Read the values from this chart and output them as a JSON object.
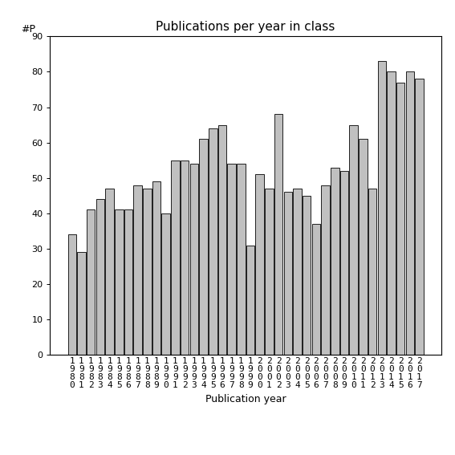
{
  "title": "Publications per year in class",
  "xlabel": "Publication year",
  "ylabel": "#P",
  "years": [
    1980,
    1981,
    1982,
    1983,
    1984,
    1985,
    1986,
    1987,
    1988,
    1989,
    1990,
    1991,
    1992,
    1993,
    1994,
    1995,
    1996,
    1997,
    1998,
    1999,
    2000,
    2001,
    2002,
    2003,
    2004,
    2005,
    2006,
    2007,
    2008,
    2009,
    2010,
    2011,
    2012,
    2013,
    2014,
    2015,
    2016,
    2017
  ],
  "values": [
    34,
    29,
    41,
    44,
    47,
    41,
    41,
    48,
    47,
    49,
    40,
    55,
    55,
    54,
    61,
    64,
    65,
    54,
    54,
    31,
    51,
    47,
    68,
    46,
    47,
    45,
    37,
    48,
    53,
    52,
    65,
    61,
    47,
    83,
    80,
    77,
    80,
    78
  ],
  "bar_color": "#c0c0c0",
  "bar_edgecolor": "#000000",
  "ylim": [
    0,
    90
  ],
  "yticks": [
    0,
    10,
    20,
    30,
    40,
    50,
    60,
    70,
    80,
    90
  ],
  "background_color": "#ffffff",
  "title_fontsize": 11,
  "label_fontsize": 9,
  "tick_fontsize": 8
}
